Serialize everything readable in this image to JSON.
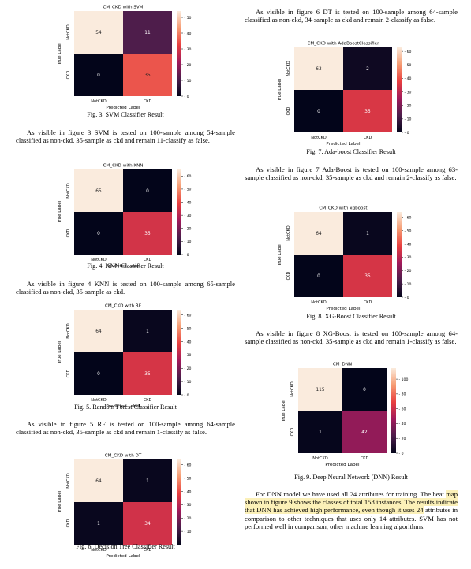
{
  "figures": [
    {
      "id": "f3",
      "title": "CM_CKD with SVM",
      "caption": "Fig. 3.  SVM Classifier Result",
      "matrix": [
        [
          54,
          11
        ],
        [
          0,
          35
        ]
      ],
      "cbar_max": 54,
      "ticks": [
        0,
        10,
        20,
        30,
        40,
        50
      ],
      "row_labels": [
        "NotCKD",
        "CKD"
      ],
      "col_labels": [
        "NotCKD",
        "CKD"
      ],
      "ylabel": "True Label",
      "xlabel": "Predicted Label"
    },
    {
      "id": "f4",
      "title": "CM_CKD with KNN",
      "caption": "Fig. 4.  KNN Classifier Result",
      "matrix": [
        [
          65,
          0
        ],
        [
          0,
          35
        ]
      ],
      "cbar_max": 65,
      "ticks": [
        0,
        10,
        20,
        30,
        40,
        50,
        60
      ],
      "row_labels": [
        "NotCKD",
        "CKD"
      ],
      "col_labels": [
        "NotCKD",
        "CKD"
      ],
      "ylabel": "True Label",
      "xlabel": "Predicted Label"
    },
    {
      "id": "f5",
      "title": "CM_CKD with RF",
      "caption": "Fig. 5.  Random Forest Classifier Result",
      "matrix": [
        [
          64,
          1
        ],
        [
          0,
          35
        ]
      ],
      "cbar_max": 64,
      "ticks": [
        0,
        10,
        20,
        30,
        40,
        50,
        60
      ],
      "row_labels": [
        "NotCKD",
        "CKD"
      ],
      "col_labels": [
        "NotCKD",
        "CKD"
      ],
      "ylabel": "True Label",
      "xlabel": "Predicted Label"
    },
    {
      "id": "f6",
      "title": "CM_CKD with DT",
      "caption": "Fig. 6.  Decision Tree Classifier Result",
      "matrix": [
        [
          64,
          1
        ],
        [
          1,
          34
        ]
      ],
      "cbar_max": 64,
      "ticks": [
        10,
        20,
        30,
        40,
        50,
        60
      ],
      "row_labels": [
        "NotCKD",
        "CKD"
      ],
      "col_labels": [
        "NotCKD",
        "CKD"
      ],
      "ylabel": "True Label",
      "xlabel": "Predicted Label"
    },
    {
      "id": "f7",
      "title": "CM_CKD with AdaBoostClassifier",
      "caption": "Fig. 7.  Ada-boost Classifier Result",
      "matrix": [
        [
          63,
          2
        ],
        [
          0,
          35
        ]
      ],
      "cbar_max": 63,
      "ticks": [
        0,
        10,
        20,
        30,
        40,
        50,
        60
      ],
      "row_labels": [
        "NotCKD",
        "CKD"
      ],
      "col_labels": [
        "NotCKD",
        "CKD"
      ],
      "ylabel": "True Label",
      "xlabel": "Predicted Label"
    },
    {
      "id": "f8",
      "title": "CM_CKD with xgboost",
      "caption": "Fig. 8.  XG-Boost Classifier Result",
      "matrix": [
        [
          64,
          1
        ],
        [
          0,
          35
        ]
      ],
      "cbar_max": 64,
      "ticks": [
        0,
        10,
        20,
        30,
        40,
        50,
        60
      ],
      "row_labels": [
        "NotCKD",
        "CKD"
      ],
      "col_labels": [
        "NotCKD",
        "CKD"
      ],
      "ylabel": "True Label",
      "xlabel": "Predicted Label"
    },
    {
      "id": "f9",
      "title": "CM_DNN",
      "caption": "Fig. 9.  Deep Neural Network (DNN) Result",
      "matrix": [
        [
          115,
          0
        ],
        [
          1,
          42
        ]
      ],
      "cbar_max": 115,
      "ticks": [
        0,
        20,
        40,
        60,
        80,
        100
      ],
      "row_labels": [
        "NotCKD",
        "CKD"
      ],
      "col_labels": [
        "NotCKD",
        "CKD"
      ],
      "ylabel": "True Label",
      "xlabel": "Predicted Label"
    }
  ],
  "paragraphs": {
    "p_svm": "As visible in figure 3 SVM is tested on 100-sample among 54-sample classified as non-ckd, 35-sample as ckd and remain 11-classify as false.",
    "p_knn": "As visible in figure 4 KNN is tested on 100-sample among 65-sample classified as non-ckd, 35-sample as ckd.",
    "p_rf": "As visible in figure 5 RF is tested on 100-sample among 64-sample classified as non-ckd, 35-sample as ckd and remain 1-classify as false.",
    "p_dt": "As visible in figure 6 DT is tested on 100-sample among 64-sample classified as non-ckd, 34-sample as ckd and remain 2-classify as false.",
    "p_ada": "As visible in figure 7 Ada-Boost is tested on 100-sample among 63-sample classified as non-ckd, 35-sample as ckd and remain 2-classify as false.",
    "p_xgb": "As visible in figure 8 XG-Boost is tested on 100-sample among 64-sample classified as non-ckd, 35-sample as ckd and remain 1-classify as false.",
    "p_dnn_1": "For DNN model we have used all 24 attributes for training. The heat ",
    "p_dnn_hl": "map shown in figure 9 shows the classes of total 158 instances. The results indicate that DNN has achieved high performance, even though it uses 24",
    "p_dnn_2": " attributes in comparison to other techniques that uses only 14 attributes. SVM has not performed well in comparison, other machine learning algorithms."
  },
  "colors": {
    "cmap": [
      "#03051a",
      "#4c1d4b",
      "#a11a5b",
      "#e83f3f",
      "#f69c73",
      "#faebdd"
    ]
  }
}
